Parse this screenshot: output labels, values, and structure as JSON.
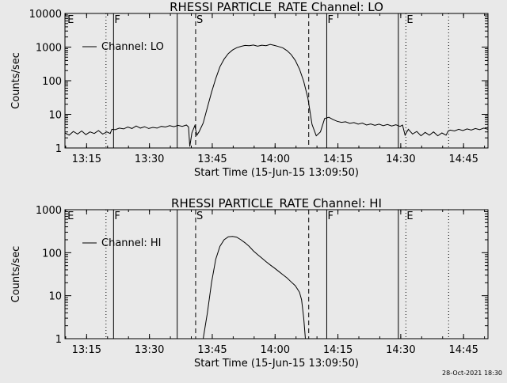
{
  "footer_timestamp": "28-Oct-2021 18:30",
  "colors": {
    "background": "#e9e9e9",
    "ink": "#000000"
  },
  "chart_data": [
    {
      "type": "line",
      "title": "RHESSI PARTICLE_RATE Channel: LO",
      "xlabel": "Start Time (15-Jun-15 13:09:50)",
      "ylabel": "Counts/sec",
      "yscale": "log",
      "ylim": [
        1,
        10000
      ],
      "xlim_minutes": [
        0,
        101
      ],
      "xticks": [
        {
          "minute": 5.17,
          "label": "13:15"
        },
        {
          "minute": 20.17,
          "label": "13:30"
        },
        {
          "minute": 35.17,
          "label": "13:45"
        },
        {
          "minute": 50.17,
          "label": "14:00"
        },
        {
          "minute": 65.17,
          "label": "14:15"
        },
        {
          "minute": 80.17,
          "label": "14:30"
        },
        {
          "minute": 95.17,
          "label": "14:45"
        }
      ],
      "yticks": [
        {
          "value": 1,
          "label": "1"
        },
        {
          "value": 10,
          "label": "10"
        },
        {
          "value": 100,
          "label": "100"
        },
        {
          "value": 1000,
          "label": "1000"
        },
        {
          "value": 10000,
          "label": "10000"
        }
      ],
      "legend": {
        "label": "Channel: LO",
        "position": "top-left"
      },
      "markers": [
        {
          "label": "E",
          "minute": 0.4,
          "style": "none"
        },
        {
          "label": "",
          "minute": 9.8,
          "style": "dotted"
        },
        {
          "label": "F",
          "minute": 11.6,
          "style": "solid"
        },
        {
          "label": "",
          "minute": 26.8,
          "style": "solid"
        },
        {
          "label": "S",
          "minute": 31.2,
          "style": "dashed"
        },
        {
          "label": "",
          "minute": 58.2,
          "style": "dashed"
        },
        {
          "label": "F",
          "minute": 62.5,
          "style": "solid"
        },
        {
          "label": "",
          "minute": 79.6,
          "style": "solid"
        },
        {
          "label": "E",
          "minute": 81.4,
          "style": "dotted"
        },
        {
          "label": "",
          "minute": 91.6,
          "style": "dotted"
        }
      ],
      "series": [
        {
          "name": "Channel: LO",
          "segments": [
            [
              [
                0,
                2.8
              ],
              [
                1,
                2.4
              ],
              [
                2,
                3.1
              ],
              [
                3,
                2.6
              ],
              [
                4,
                3.2
              ],
              [
                5,
                2.5
              ],
              [
                6,
                3.0
              ],
              [
                7,
                2.7
              ],
              [
                8,
                3.3
              ],
              [
                9,
                2.6
              ],
              [
                10,
                3.0
              ],
              [
                10.8,
                2.7
              ],
              [
                11.2,
                3.6
              ],
              [
                12,
                3.5
              ],
              [
                13,
                3.9
              ],
              [
                14,
                3.7
              ],
              [
                15,
                4.2
              ],
              [
                16,
                3.8
              ],
              [
                17,
                4.5
              ],
              [
                18,
                3.9
              ],
              [
                19,
                4.3
              ],
              [
                20,
                3.8
              ],
              [
                21,
                4.1
              ],
              [
                22,
                3.9
              ],
              [
                23,
                4.4
              ],
              [
                24,
                4.2
              ],
              [
                25,
                4.6
              ],
              [
                26,
                4.3
              ],
              [
                27,
                4.7
              ],
              [
                28,
                4.4
              ],
              [
                29,
                4.8
              ],
              [
                29.5,
                4.2
              ],
              [
                29.8,
                1.1
              ],
              [
                30.3,
                2.8
              ],
              [
                31,
                4.6
              ],
              [
                31.5,
                2.4
              ],
              [
                32,
                3.0
              ],
              [
                33,
                5.5
              ],
              [
                34,
                16
              ],
              [
                35,
                45
              ],
              [
                36,
                115
              ],
              [
                37,
                260
              ],
              [
                38,
                440
              ],
              [
                39,
                640
              ],
              [
                40,
                820
              ],
              [
                41,
                960
              ],
              [
                42,
                1050
              ],
              [
                43,
                1120
              ],
              [
                44,
                1100
              ],
              [
                45,
                1150
              ],
              [
                46,
                1060
              ],
              [
                47,
                1140
              ],
              [
                48,
                1100
              ],
              [
                49,
                1200
              ],
              [
                50,
                1120
              ],
              [
                51,
                1040
              ],
              [
                52,
                950
              ],
              [
                53,
                790
              ],
              [
                54,
                600
              ],
              [
                55,
                400
              ],
              [
                56,
                220
              ],
              [
                57,
                95
              ],
              [
                58,
                30
              ],
              [
                59,
                5
              ],
              [
                60,
                2.3
              ],
              [
                61,
                3.0
              ],
              [
                62,
                7.5
              ],
              [
                63,
                8.2
              ],
              [
                64,
                7.0
              ],
              [
                65,
                6.2
              ],
              [
                66,
                5.8
              ],
              [
                67,
                6.0
              ],
              [
                68,
                5.4
              ],
              [
                69,
                5.7
              ],
              [
                70,
                5.1
              ],
              [
                71,
                5.5
              ],
              [
                72,
                4.8
              ],
              [
                73,
                5.2
              ],
              [
                74,
                4.7
              ],
              [
                75,
                5.1
              ],
              [
                76,
                4.6
              ],
              [
                77,
                5.0
              ],
              [
                78,
                4.5
              ],
              [
                79,
                4.9
              ],
              [
                80,
                4.4
              ],
              [
                80.6,
                4.8
              ],
              [
                81.2,
                2.4
              ],
              [
                82,
                3.6
              ],
              [
                83,
                2.6
              ],
              [
                84,
                3.1
              ],
              [
                85,
                2.3
              ],
              [
                86,
                2.9
              ],
              [
                87,
                2.4
              ],
              [
                88,
                3.0
              ],
              [
                89,
                2.3
              ],
              [
                90,
                2.8
              ],
              [
                91,
                2.4
              ],
              [
                91.5,
                3.2
              ],
              [
                92,
                3.4
              ],
              [
                93,
                3.2
              ],
              [
                94,
                3.6
              ],
              [
                95,
                3.3
              ],
              [
                96,
                3.7
              ],
              [
                97,
                3.4
              ],
              [
                98,
                3.8
              ],
              [
                99,
                3.5
              ],
              [
                100,
                3.9
              ],
              [
                101,
                3.6
              ]
            ]
          ]
        }
      ]
    },
    {
      "type": "line",
      "title": "RHESSI PARTICLE_RATE Channel: HI",
      "xlabel": "Start Time (15-Jun-15 13:09:50)",
      "ylabel": "Counts/sec",
      "yscale": "log",
      "ylim": [
        1,
        1000
      ],
      "xlim_minutes": [
        0,
        101
      ],
      "xticks": [
        {
          "minute": 5.17,
          "label": "13:15"
        },
        {
          "minute": 20.17,
          "label": "13:30"
        },
        {
          "minute": 35.17,
          "label": "13:45"
        },
        {
          "minute": 50.17,
          "label": "14:00"
        },
        {
          "minute": 65.17,
          "label": "14:15"
        },
        {
          "minute": 80.17,
          "label": "14:30"
        },
        {
          "minute": 95.17,
          "label": "14:45"
        }
      ],
      "yticks": [
        {
          "value": 1,
          "label": "1"
        },
        {
          "value": 10,
          "label": "10"
        },
        {
          "value": 100,
          "label": "100"
        },
        {
          "value": 1000,
          "label": "1000"
        }
      ],
      "legend": {
        "label": "Channel: HI",
        "position": "top-left"
      },
      "markers": [
        {
          "label": "E",
          "minute": 0.4,
          "style": "none"
        },
        {
          "label": "",
          "minute": 9.8,
          "style": "dotted"
        },
        {
          "label": "F",
          "minute": 11.6,
          "style": "solid"
        },
        {
          "label": "",
          "minute": 26.8,
          "style": "solid"
        },
        {
          "label": "S",
          "minute": 31.2,
          "style": "dashed"
        },
        {
          "label": "",
          "minute": 58.2,
          "style": "dashed"
        },
        {
          "label": "F",
          "minute": 62.5,
          "style": "solid"
        },
        {
          "label": "",
          "minute": 79.6,
          "style": "solid"
        },
        {
          "label": "E",
          "minute": 81.4,
          "style": "dotted"
        },
        {
          "label": "",
          "minute": 91.6,
          "style": "dotted"
        }
      ],
      "series": [
        {
          "name": "Channel: HI",
          "segments": [
            [
              [
                33,
                1
              ],
              [
                34,
                4
              ],
              [
                35,
                20
              ],
              [
                36,
                70
              ],
              [
                37,
                140
              ],
              [
                38,
                200
              ],
              [
                39,
                235
              ],
              [
                40,
                240
              ],
              [
                41,
                230
              ],
              [
                42,
                200
              ],
              [
                43,
                170
              ],
              [
                44,
                140
              ],
              [
                45,
                110
              ],
              [
                46,
                90
              ],
              [
                47,
                75
              ],
              [
                48,
                62
              ],
              [
                49,
                52
              ],
              [
                50,
                44
              ],
              [
                51,
                37
              ],
              [
                52,
                31
              ],
              [
                53,
                26
              ],
              [
                54,
                21
              ],
              [
                55,
                17
              ],
              [
                56,
                12
              ],
              [
                56.5,
                8
              ],
              [
                57,
                3
              ],
              [
                57.4,
                1
              ]
            ]
          ]
        }
      ]
    }
  ]
}
